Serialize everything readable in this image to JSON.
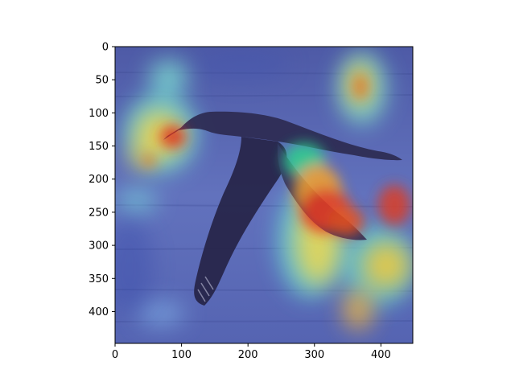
{
  "chart_data": {
    "type": "heatmap",
    "title": "",
    "xlabel": "",
    "ylabel": "",
    "xlim": [
      0,
      448
    ],
    "ylim": [
      448,
      0
    ],
    "x_ticks": [
      0,
      100,
      200,
      300,
      400
    ],
    "y_ticks": [
      0,
      50,
      100,
      150,
      200,
      250,
      300,
      350,
      400
    ],
    "colormap": "jet",
    "overlay_on_photo": true,
    "grid": false
  },
  "image": {
    "subject": "seabird-in-flight-over-water",
    "colors": {
      "water": "#5a6bb8",
      "bird_body": "#2f2e55",
      "attention_hot": "#e0261b",
      "attention_warm": "#f2c93a",
      "attention_mid": "#5fd6d0"
    }
  }
}
